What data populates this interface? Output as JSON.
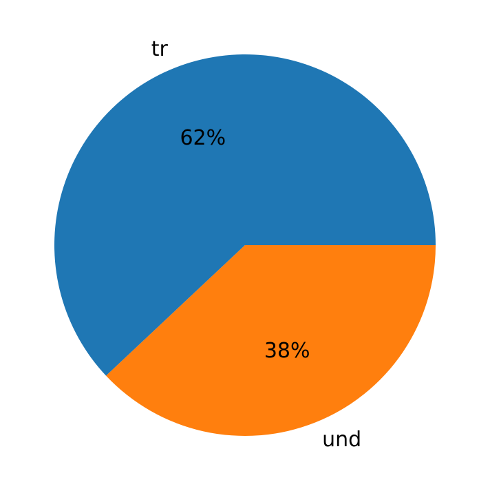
{
  "chart_data": {
    "type": "pie",
    "categories": [
      "tr",
      "und"
    ],
    "values": [
      62,
      38
    ],
    "value_labels": [
      "62%",
      "38%"
    ],
    "colors": [
      "#1f77b4",
      "#ff7f0e"
    ]
  }
}
